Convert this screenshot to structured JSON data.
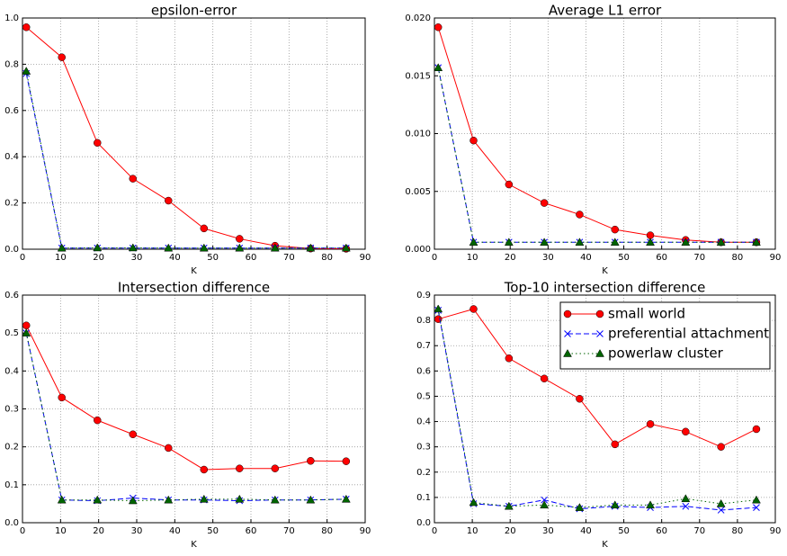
{
  "chart_data": [
    {
      "type": "line",
      "title": "epsilon-error",
      "x_label": "K",
      "x": [
        1,
        10.33,
        19.67,
        29,
        38.33,
        47.67,
        57,
        66.33,
        75.67,
        85
      ],
      "xlim": [
        0,
        90
      ],
      "xticks": [
        0,
        10,
        20,
        30,
        40,
        50,
        60,
        70,
        80,
        90
      ],
      "ylim": [
        0,
        1
      ],
      "yticks": [
        {
          "value": 0,
          "label": "0.0"
        },
        0.2,
        0.4,
        0.6,
        0.8,
        {
          "value": 1,
          "label": "1.0"
        }
      ],
      "grid": true,
      "series": [
        {
          "name": "small world",
          "color": "#ff0000",
          "values": [
            0.96,
            0.83,
            0.46,
            0.305,
            0.21,
            0.09,
            0.045,
            0.015,
            0.003,
            0.002
          ]
        },
        {
          "name": "preferential attachment",
          "color": "#0000ff",
          "values": [
            0.76,
            0.005,
            0.005,
            0.005,
            0.005,
            0.005,
            0.005,
            0.005,
            0.005,
            0.005
          ]
        },
        {
          "name": "powerlaw cluster",
          "color": "#006400",
          "values": [
            0.77,
            0.005,
            0.006,
            0.006,
            0.005,
            0.005,
            0.005,
            0.005,
            0.005,
            0.005
          ]
        }
      ]
    },
    {
      "type": "line",
      "title": "Average L1 error",
      "x_label": "K",
      "x": [
        1,
        10.33,
        19.67,
        29,
        38.33,
        47.67,
        57,
        66.33,
        75.67,
        85
      ],
      "xlim": [
        0,
        90
      ],
      "xticks": [
        0,
        10,
        20,
        30,
        40,
        50,
        60,
        70,
        80,
        90
      ],
      "ylim": [
        0,
        0.02
      ],
      "yticks": [
        {
          "value": 0,
          "label": "0.000"
        },
        {
          "value": 0.005,
          "label": "0.005"
        },
        {
          "value": 0.01,
          "label": "0.010"
        },
        {
          "value": 0.015,
          "label": "0.015"
        },
        {
          "value": 0.02,
          "label": "0.020"
        }
      ],
      "grid": true,
      "series": [
        {
          "name": "small world",
          "color": "#ff0000",
          "values": [
            0.0192,
            0.0094,
            0.0056,
            0.004,
            0.003,
            0.0017,
            0.0012,
            0.0008,
            0.0006,
            0.0006
          ]
        },
        {
          "name": "preferential attachment",
          "color": "#0000ff",
          "values": [
            0.0157,
            0.0006,
            0.0006,
            0.0006,
            0.0006,
            0.0006,
            0.0006,
            0.0006,
            0.0006,
            0.0006
          ]
        },
        {
          "name": "powerlaw cluster",
          "color": "#006400",
          "values": [
            0.0157,
            0.0006,
            0.0006,
            0.0006,
            0.0006,
            0.0006,
            0.0006,
            0.0006,
            0.0006,
            0.0006
          ]
        }
      ]
    },
    {
      "type": "line",
      "title": "Intersection difference",
      "x_label": "K",
      "x": [
        1,
        10.33,
        19.67,
        29,
        38.33,
        47.67,
        57,
        66.33,
        75.67,
        85
      ],
      "xlim": [
        0,
        90
      ],
      "xticks": [
        0,
        10,
        20,
        30,
        40,
        50,
        60,
        70,
        80,
        90
      ],
      "ylim": [
        0,
        0.6
      ],
      "yticks": [
        {
          "value": 0,
          "label": "0.0"
        },
        0.1,
        0.2,
        0.3,
        0.4,
        0.5,
        0.6
      ],
      "grid": true,
      "series": [
        {
          "name": "small world",
          "color": "#ff0000",
          "values": [
            0.52,
            0.33,
            0.27,
            0.233,
            0.197,
            0.14,
            0.143,
            0.143,
            0.163,
            0.162
          ]
        },
        {
          "name": "preferential attachment",
          "color": "#0000ff",
          "values": [
            0.5,
            0.06,
            0.058,
            0.065,
            0.06,
            0.06,
            0.058,
            0.06,
            0.06,
            0.062
          ]
        },
        {
          "name": "powerlaw cluster",
          "color": "#006400",
          "values": [
            0.5,
            0.06,
            0.06,
            0.058,
            0.06,
            0.062,
            0.062,
            0.06,
            0.06,
            0.062
          ]
        }
      ]
    },
    {
      "type": "line",
      "title": "Top-10 intersection difference",
      "x_label": "K",
      "x": [
        1,
        10.33,
        19.67,
        29,
        38.33,
        47.67,
        57,
        66.33,
        75.67,
        85
      ],
      "xlim": [
        0,
        90
      ],
      "xticks": [
        0,
        10,
        20,
        30,
        40,
        50,
        60,
        70,
        80,
        90
      ],
      "ylim": [
        0,
        0.9
      ],
      "yticks": [
        {
          "value": 0,
          "label": "0.0"
        },
        0.1,
        0.2,
        0.3,
        0.4,
        0.5,
        0.6,
        0.7,
        0.8,
        0.9
      ],
      "grid": true,
      "legend": "upper right",
      "series": [
        {
          "name": "small world",
          "color": "#ff0000",
          "values": [
            0.805,
            0.845,
            0.65,
            0.57,
            0.49,
            0.31,
            0.39,
            0.36,
            0.3,
            0.37
          ]
        },
        {
          "name": "preferential attachment",
          "color": "#0000ff",
          "values": [
            0.84,
            0.075,
            0.065,
            0.09,
            0.055,
            0.065,
            0.06,
            0.065,
            0.05,
            0.06
          ]
        },
        {
          "name": "powerlaw cluster",
          "color": "#006400",
          "values": [
            0.845,
            0.08,
            0.065,
            0.07,
            0.06,
            0.07,
            0.07,
            0.095,
            0.075,
            0.09
          ]
        }
      ]
    }
  ]
}
